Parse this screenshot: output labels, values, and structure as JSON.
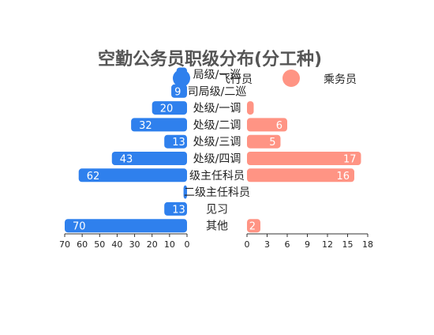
{
  "chart_data": {
    "type": "bar",
    "title": "空勤公务员职级分布(分工种)",
    "categories": [
      "二级局级/一巡",
      "司局级/二巡",
      "处级/一调",
      "处级/二调",
      "处级/三调",
      "处级/四调",
      "一级主任科员",
      "二级主任科员",
      "见习",
      "其他"
    ],
    "category_labels_visible": [
      "局级/一巡",
      "司局级/二巡",
      "处级/一调",
      "处级/二调",
      "处级/三调",
      "处级/四调",
      "级主任科员",
      "二级主任科员",
      "见习",
      "其他"
    ],
    "series": [
      {
        "name": "飞行员",
        "values": [
          6,
          9,
          20,
          32,
          13,
          43,
          62,
          2,
          13,
          70
        ],
        "labels": [
          "",
          "9",
          "20",
          "32",
          "13",
          "43",
          "62",
          "2",
          "13",
          "70"
        ],
        "color": "#2f80ed"
      },
      {
        "name": "乘务员",
        "values": [
          0,
          0,
          1,
          6,
          5,
          17,
          16,
          0,
          0,
          2
        ],
        "labels": [
          "",
          "",
          "",
          "6",
          "5",
          "17",
          "16",
          "",
          "",
          "2"
        ],
        "color": "#ff9484"
      }
    ],
    "left_axis": {
      "ticks": [
        "70",
        "60",
        "50",
        "40",
        "30",
        "20",
        "10",
        "0"
      ],
      "range": [
        0,
        70
      ]
    },
    "right_axis": {
      "ticks": [
        "0",
        "3",
        "6",
        "9",
        "12",
        "15",
        "18"
      ],
      "range": [
        0,
        18
      ]
    },
    "legend_placement": "top"
  }
}
